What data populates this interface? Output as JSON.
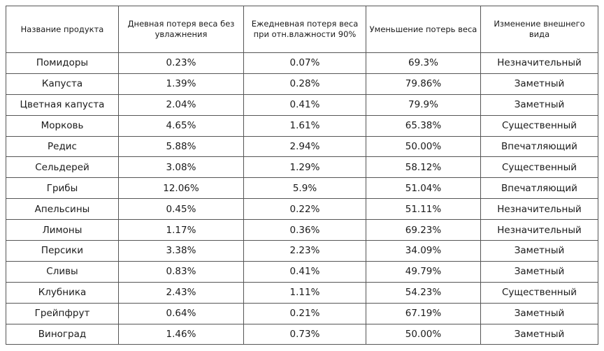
{
  "table": {
    "headers": [
      "Название продукта",
      "Дневная потеря веса без увлажнения",
      "Ежедневная потеря веса при отн.влажности 90%",
      "Уменьшение потерь веса",
      "Изменение внешнего вида"
    ],
    "rows": [
      [
        "Помидоры",
        "0.23%",
        "0.07%",
        "69.3%",
        "Незначительный"
      ],
      [
        "Капуста",
        "1.39%",
        "0.28%",
        "79.86%",
        "Заметный"
      ],
      [
        "Цветная капуста",
        "2.04%",
        "0.41%",
        "79.9%",
        "Заметный"
      ],
      [
        "Морковь",
        "4.65%",
        "1.61%",
        "65.38%",
        "Существенный"
      ],
      [
        "Редис",
        "5.88%",
        "2.94%",
        "50.00%",
        "Впечатляющий"
      ],
      [
        "Сельдерей",
        "3.08%",
        "1.29%",
        "58.12%",
        "Существенный"
      ],
      [
        "Грибы",
        "12.06%",
        "5.9%",
        "51.04%",
        "Впечатляющий"
      ],
      [
        "Апельсины",
        "0.45%",
        "0.22%",
        "51.11%",
        "Незначительный"
      ],
      [
        "Лимоны",
        "1.17%",
        "0.36%",
        "69.23%",
        "Незначительный"
      ],
      [
        "Персики",
        "3.38%",
        "2.23%",
        "34.09%",
        "Заметный"
      ],
      [
        "Сливы",
        "0.83%",
        "0.41%",
        "49.79%",
        "Заметный"
      ],
      [
        "Клубника",
        "2.43%",
        "1.11%",
        "54.23%",
        "Существенный"
      ],
      [
        "Грейпфрут",
        "0.64%",
        "0.21%",
        "67.19%",
        "Заметный"
      ],
      [
        "Виноград",
        "1.46%",
        "0.73%",
        "50.00%",
        "Заметный"
      ]
    ]
  }
}
